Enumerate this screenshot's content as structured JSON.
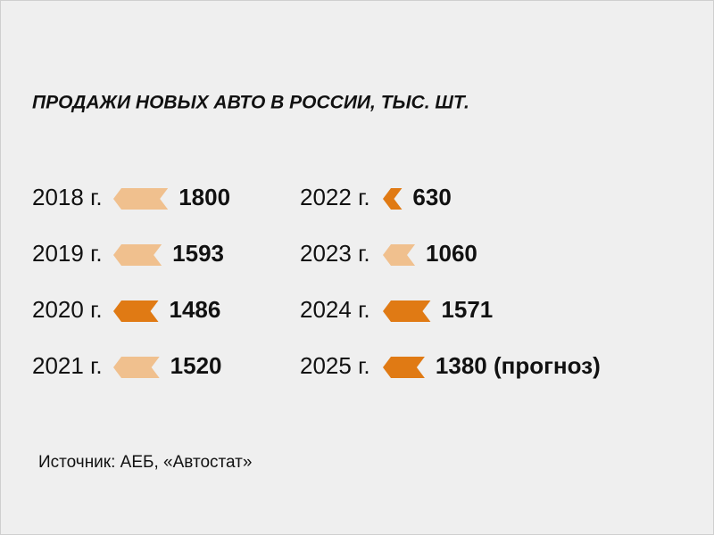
{
  "chart_data": {
    "type": "bar",
    "title": "ПРОДАЖИ НОВЫХ АВТО В РОССИИ, ТЫС. ШТ.",
    "categories": [
      "2018 г.",
      "2019 г.",
      "2020 г.",
      "2021 г.",
      "2022 г.",
      "2023 г.",
      "2024 г.",
      "2025 г."
    ],
    "values": [
      1800,
      1593,
      1486,
      1520,
      630,
      1060,
      1571,
      1380
    ],
    "value_labels": [
      "1800",
      "1593",
      "1486",
      "1520",
      "630",
      "1060",
      "1571",
      "1380 (прогноз)"
    ],
    "colors": [
      "#f0c08e",
      "#f0c08e",
      "#e07a14",
      "#f0c08e",
      "#e07a14",
      "#f0c08e",
      "#e07a14",
      "#e07a14"
    ],
    "source": "Источник: АЕБ, «Автостат»"
  }
}
